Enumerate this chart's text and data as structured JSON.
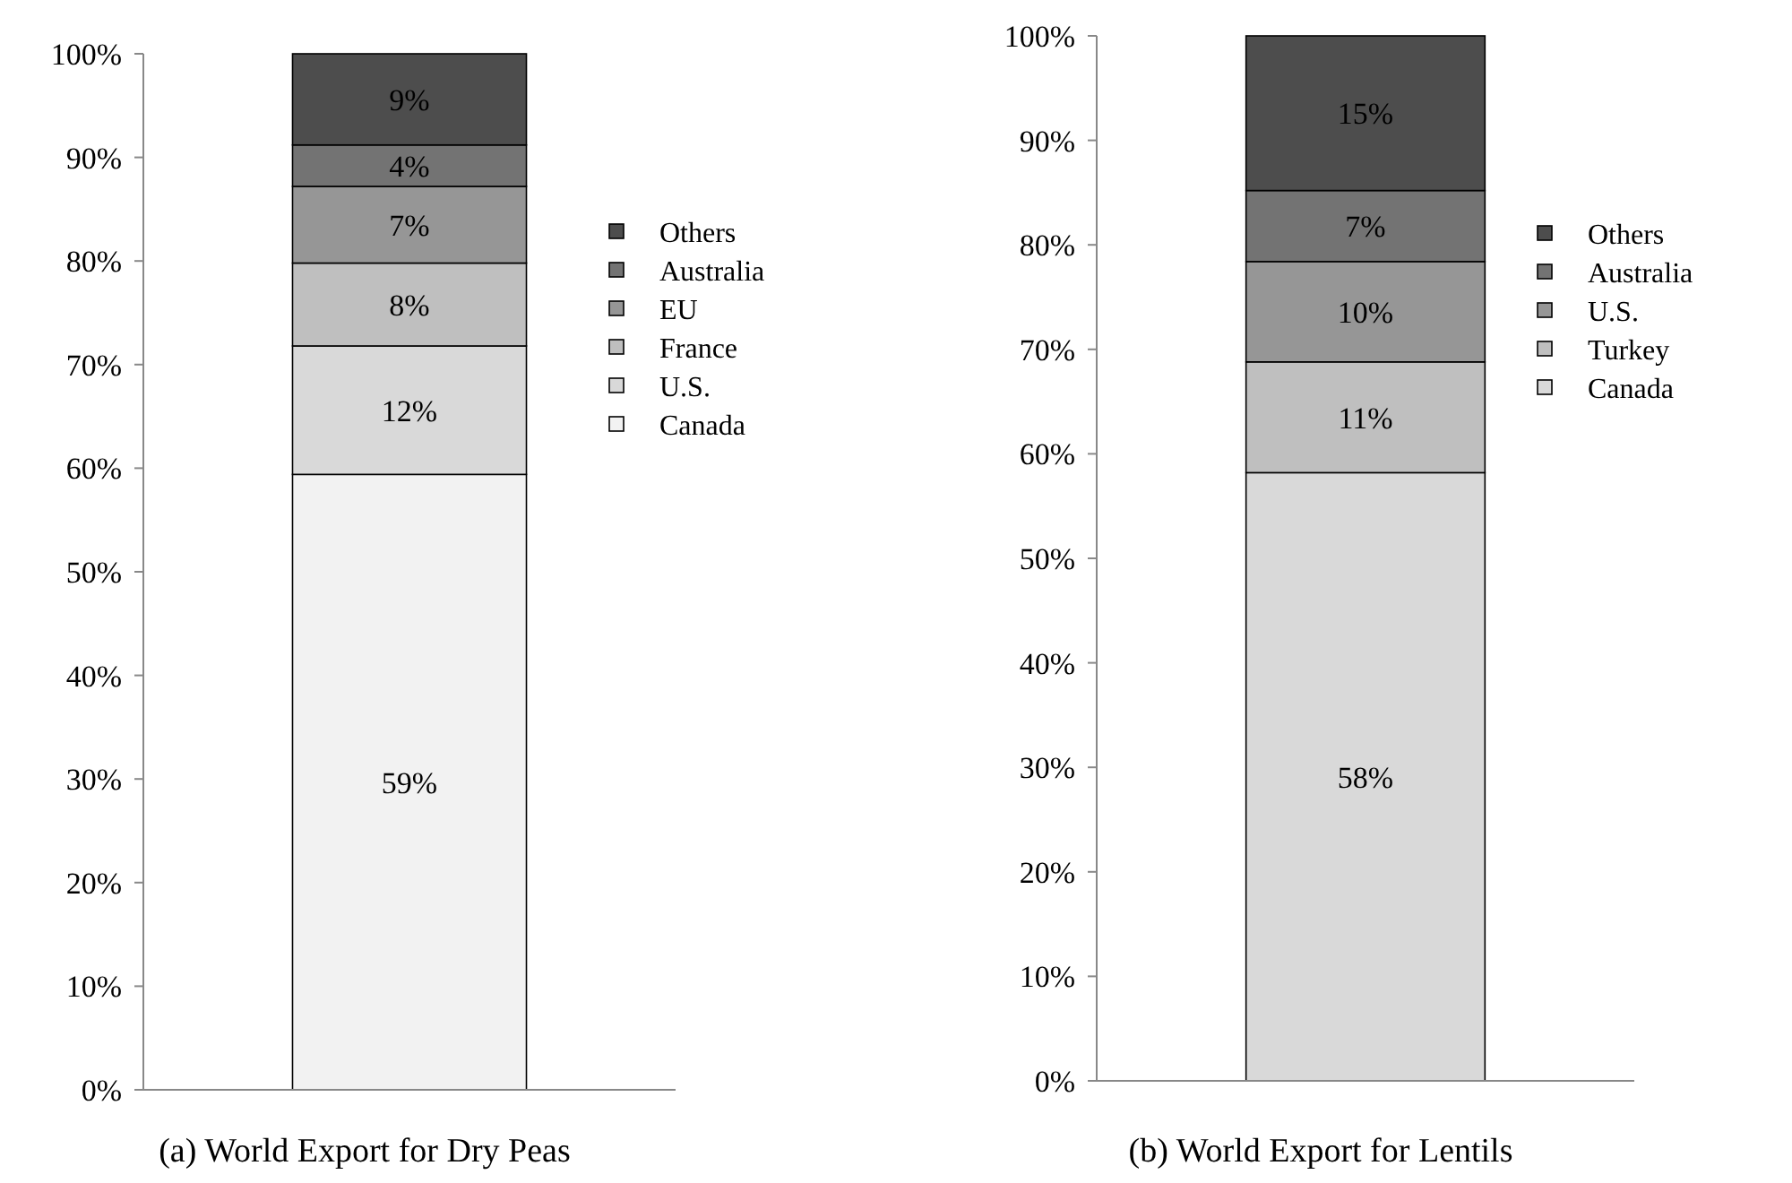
{
  "chart_data": [
    {
      "type": "bar",
      "title": "(a) World Export for Dry Peas",
      "categories": [
        null
      ],
      "stacked": true,
      "legend": "right",
      "ylim": [
        0,
        100
      ],
      "yticks": [
        {
          "value": 0,
          "label": "0%"
        },
        {
          "value": 10,
          "label": "10%"
        },
        {
          "value": 20,
          "label": "20%"
        },
        {
          "value": 30,
          "label": "30%"
        },
        {
          "value": 40,
          "label": "40%"
        },
        {
          "value": 50,
          "label": "50%"
        },
        {
          "value": 60,
          "label": "60%"
        },
        {
          "value": 70,
          "label": "70%"
        },
        {
          "value": 80,
          "label": "80%"
        },
        {
          "value": 90,
          "label": "90%"
        },
        {
          "value": 100,
          "label": "100%"
        }
      ],
      "series": [
        {
          "name": "Canada",
          "color": "#f2f2f2",
          "values": [
            59.4
          ],
          "value_labels": [
            "59%"
          ]
        },
        {
          "name": "U.S.",
          "color": "#d9d9d9",
          "values": [
            12.4
          ],
          "value_labels": [
            "12%"
          ]
        },
        {
          "name": "France",
          "color": "#bfbfbf",
          "values": [
            8
          ],
          "value_labels": [
            "8%"
          ]
        },
        {
          "name": "EU",
          "color": "#969696",
          "values": [
            7.4
          ],
          "value_labels": [
            "7%"
          ]
        },
        {
          "name": "Australia",
          "color": "#737373",
          "values": [
            4
          ],
          "value_labels": [
            "4%"
          ]
        },
        {
          "name": "Others",
          "color": "#4d4d4d",
          "values": [
            8.8
          ],
          "value_labels": [
            "9%"
          ]
        }
      ]
    },
    {
      "type": "bar",
      "title": "(b) World Export for Lentils",
      "categories": [
        null
      ],
      "stacked": true,
      "legend": "right",
      "ylim": [
        0,
        100
      ],
      "yticks": [
        {
          "value": 0,
          "label": "0%"
        },
        {
          "value": 10,
          "label": "10%"
        },
        {
          "value": 20,
          "label": "20%"
        },
        {
          "value": 30,
          "label": "30%"
        },
        {
          "value": 40,
          "label": "40%"
        },
        {
          "value": 50,
          "label": "50%"
        },
        {
          "value": 60,
          "label": "60%"
        },
        {
          "value": 70,
          "label": "70%"
        },
        {
          "value": 80,
          "label": "80%"
        },
        {
          "value": 90,
          "label": "90%"
        },
        {
          "value": 100,
          "label": "100%"
        }
      ],
      "series": [
        {
          "name": "Canada",
          "color": "#d9d9d9",
          "values": [
            58.2
          ],
          "value_labels": [
            "58%"
          ]
        },
        {
          "name": "Turkey",
          "color": "#bfbfbf",
          "values": [
            10.6
          ],
          "value_labels": [
            "11%"
          ]
        },
        {
          "name": "U.S.",
          "color": "#969696",
          "values": [
            9.6
          ],
          "value_labels": [
            "10%"
          ]
        },
        {
          "name": "Australia",
          "color": "#737373",
          "values": [
            6.8
          ],
          "value_labels": [
            "7%"
          ]
        },
        {
          "name": "Others",
          "color": "#4d4d4d",
          "values": [
            14.8
          ],
          "value_labels": [
            "15%"
          ]
        }
      ]
    }
  ]
}
